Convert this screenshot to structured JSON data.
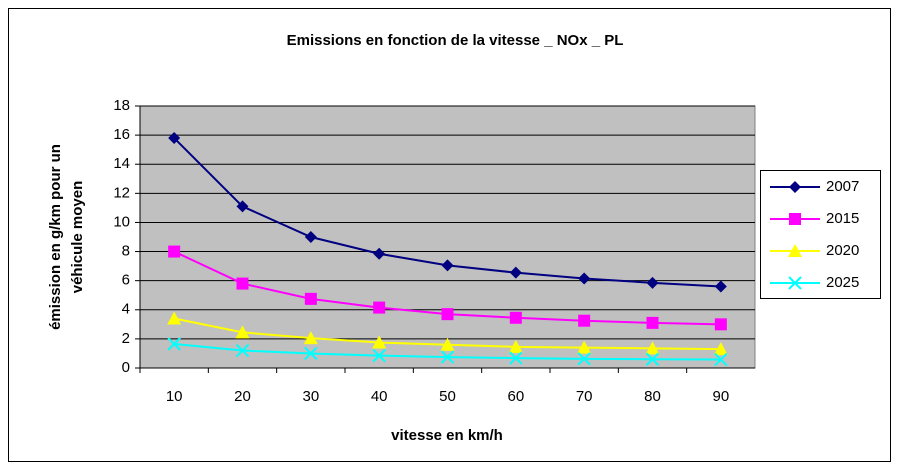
{
  "chart_data": {
    "type": "line",
    "title": "Emissions en fonction de la vitesse _ NOx _ PL",
    "xlabel": "vitesse en km/h",
    "ylabel": [
      "émission en g/km pour un",
      "véhicule moyen"
    ],
    "categories": [
      "10",
      "20",
      "30",
      "40",
      "50",
      "60",
      "70",
      "80",
      "90"
    ],
    "series": [
      {
        "name": "2007",
        "color": "#000080",
        "marker": "diamond",
        "values": [
          15.8,
          11.1,
          9.0,
          7.85,
          7.05,
          6.55,
          6.15,
          5.85,
          5.6
        ]
      },
      {
        "name": "2015",
        "color": "#ff00ff",
        "marker": "square",
        "values": [
          8.0,
          5.8,
          4.75,
          4.15,
          3.7,
          3.45,
          3.25,
          3.1,
          3.0
        ]
      },
      {
        "name": "2020",
        "color": "#ffff00",
        "marker": "triangle",
        "values": [
          3.4,
          2.45,
          2.05,
          1.75,
          1.6,
          1.45,
          1.4,
          1.35,
          1.3
        ]
      },
      {
        "name": "2025",
        "color": "#00ffff",
        "marker": "x",
        "values": [
          1.65,
          1.2,
          1.0,
          0.85,
          0.75,
          0.68,
          0.63,
          0.6,
          0.58
        ]
      }
    ],
    "ylim": [
      0,
      18
    ],
    "yticks": [
      0,
      2,
      4,
      6,
      8,
      10,
      12,
      14,
      16,
      18
    ],
    "grid": true,
    "legend": "right"
  }
}
